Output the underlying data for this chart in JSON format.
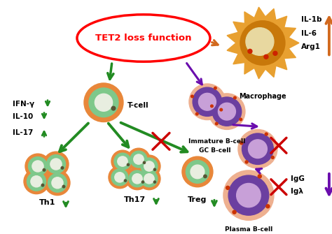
{
  "bg_color": "#ffffff",
  "green": "#228B22",
  "orange": "#D2691E",
  "red": "#CC0000",
  "purple": "#6A0DAD",
  "cell_orange_outer": "#E8873A",
  "cell_orange_mid": "#F0A060",
  "cell_green_inner": "#7EC88A",
  "cell_white_center": "#E8EEE0",
  "cell_purple_inner": "#6B3FA0",
  "cell_light_purple": "#C8A0D8",
  "macrophage_color": "#E8A030",
  "tet2_text": "TET2 loss function",
  "labels": {
    "tcell": "T-cell",
    "macrophage": "Macrophage",
    "immature_b": "Immature B-cell",
    "gc_b": "GC B-cell",
    "plasma_b": "Plasma B-cell",
    "th1": "Th1",
    "th17": "Th17",
    "treg": "Treg"
  }
}
